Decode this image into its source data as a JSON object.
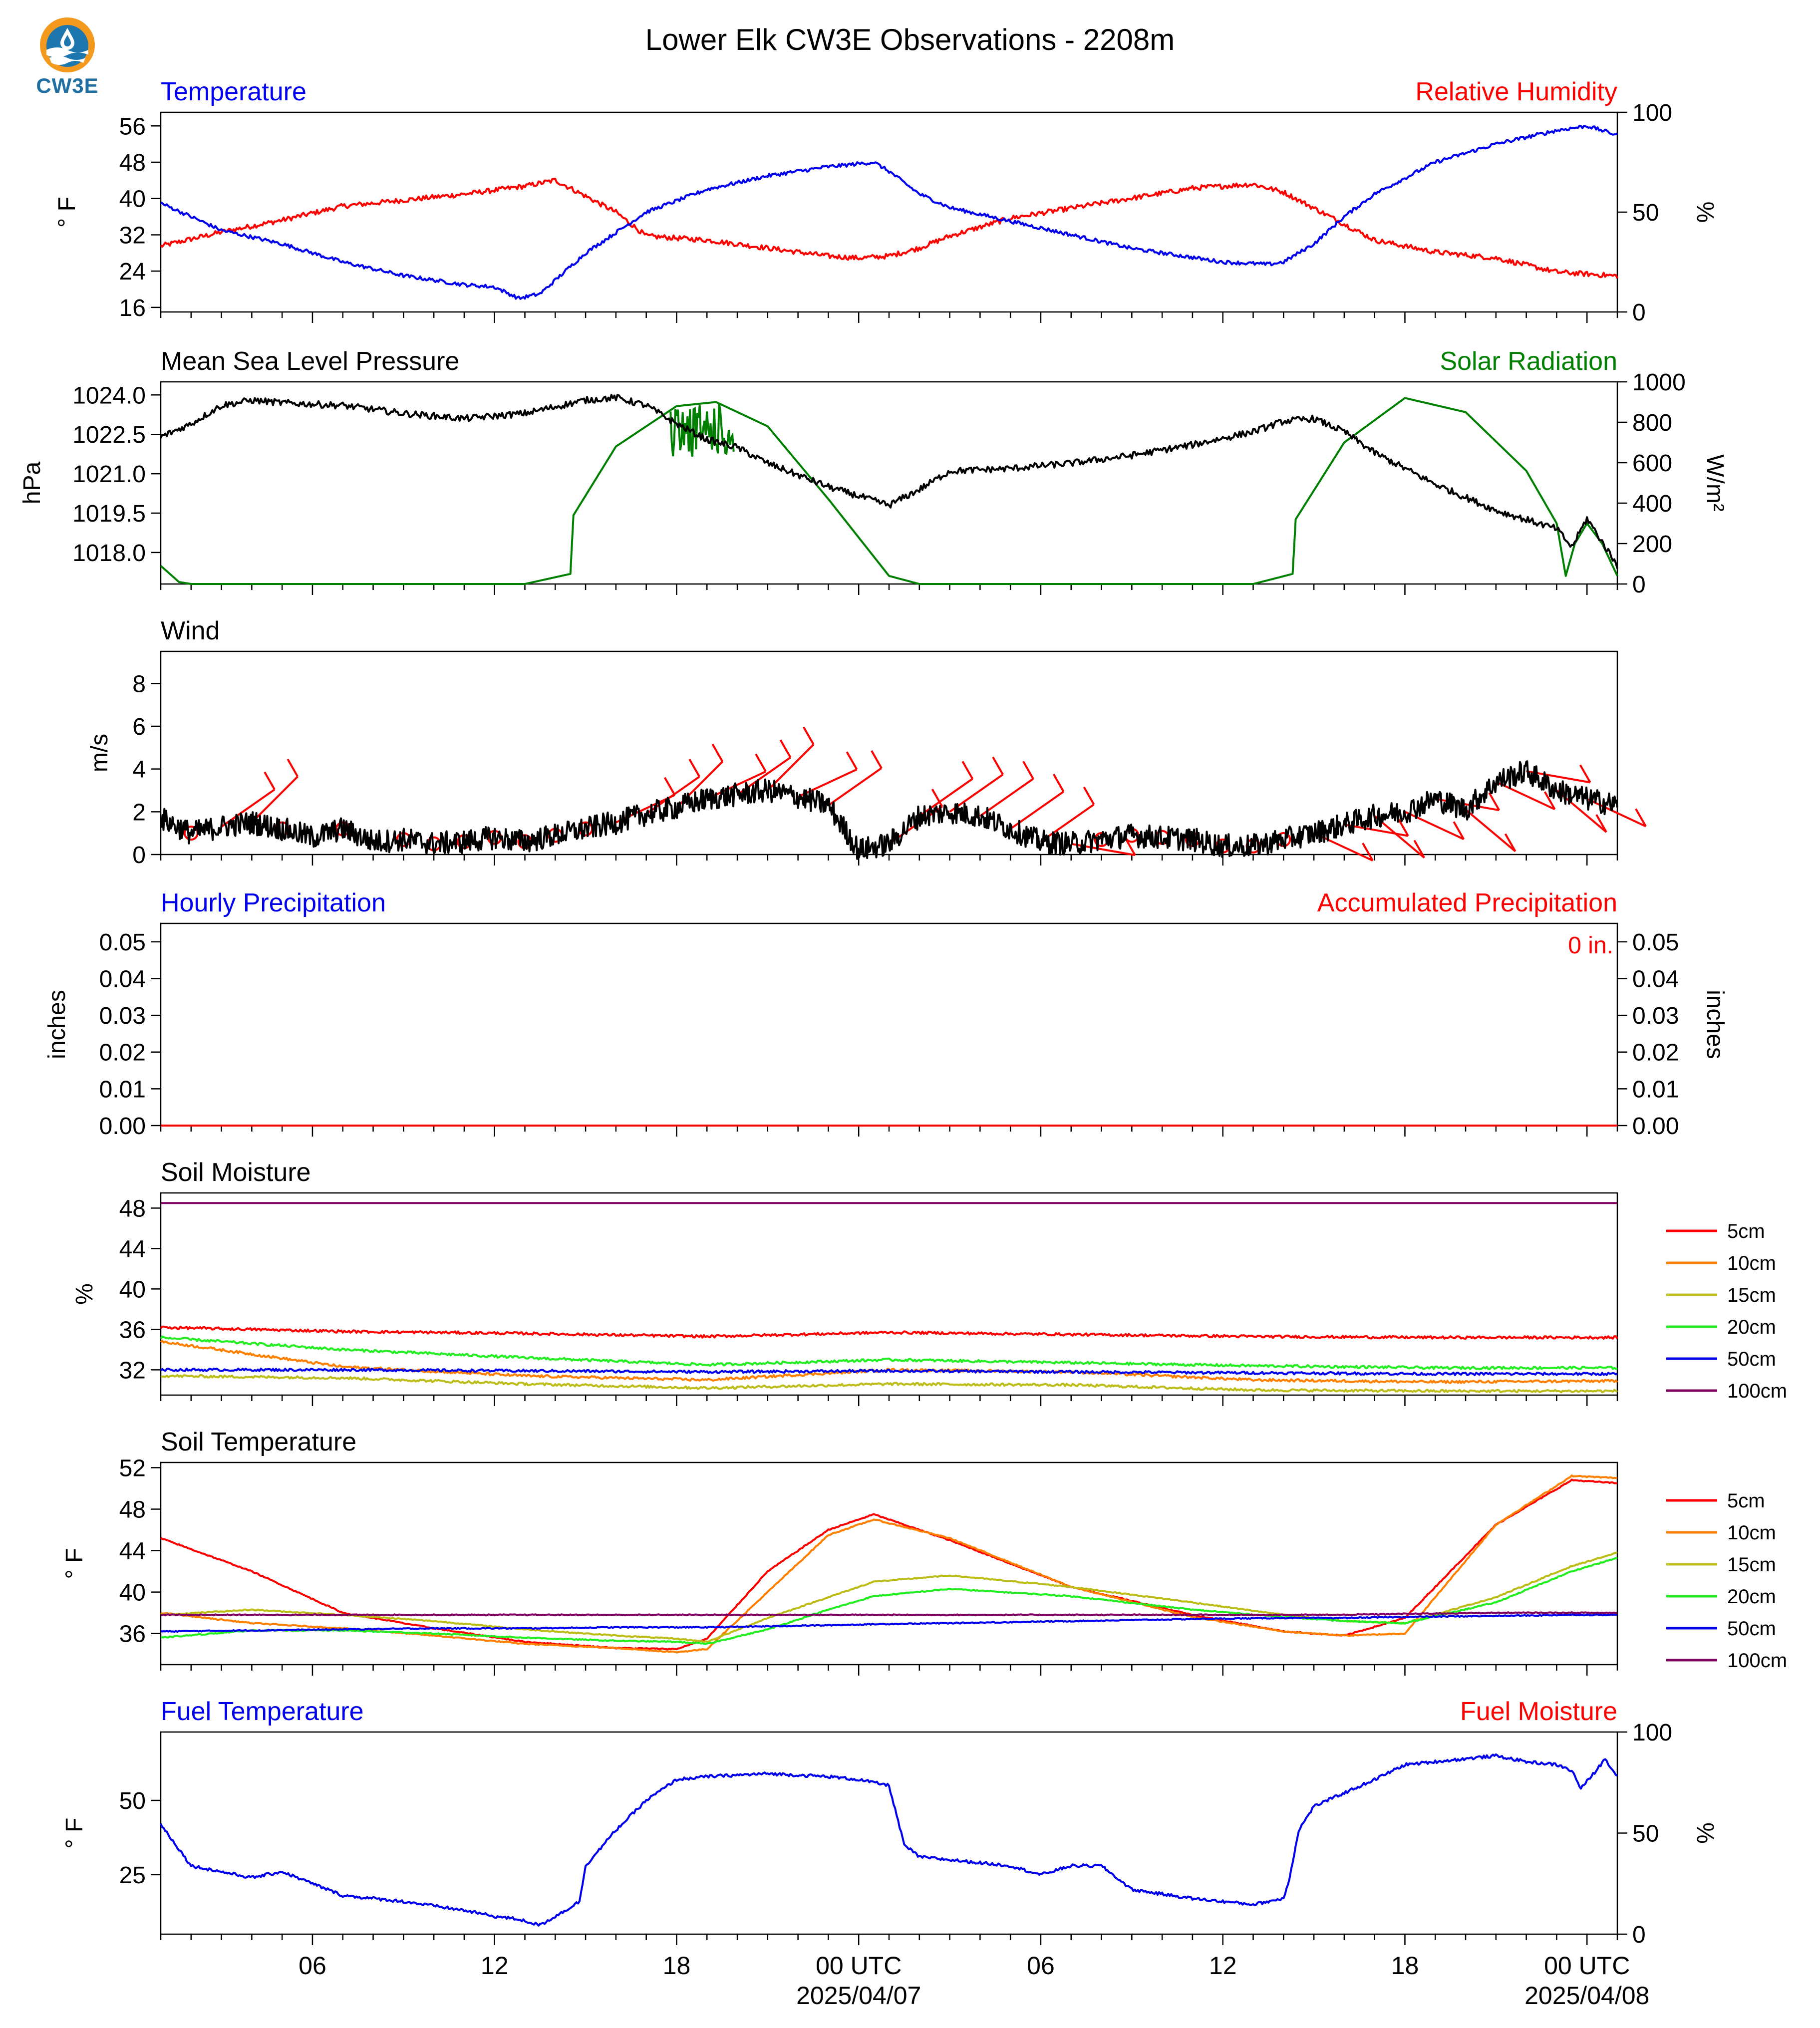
{
  "title": "Lower Elk CW3E Observations - 2208m",
  "logo_text": "CW3E",
  "colors": {
    "blue": "#0000ee",
    "red": "#ff0000",
    "green": "#008000",
    "black": "#000000"
  },
  "x_axis": {
    "range_hours": [
      0,
      48
    ],
    "ticks": [
      {
        "h": 5,
        "label": "06",
        "date": ""
      },
      {
        "h": 11,
        "label": "12",
        "date": ""
      },
      {
        "h": 17,
        "label": "18",
        "date": ""
      },
      {
        "h": 23,
        "label": "00 UTC",
        "date": "2025/04/07"
      },
      {
        "h": 29,
        "label": "06",
        "date": ""
      },
      {
        "h": 35,
        "label": "12",
        "date": ""
      },
      {
        "h": 41,
        "label": "18",
        "date": ""
      },
      {
        "h": 47,
        "label": "00 UTC",
        "date": "2025/04/08"
      }
    ]
  },
  "panels": {
    "temp_rh": {
      "title_left": "Temperature",
      "title_right": "Relative Humidity",
      "left_unit": "° F",
      "right_unit": "%",
      "left_ticks": [
        16,
        24,
        32,
        40,
        48,
        56
      ],
      "right_ticks": [
        0,
        50,
        100
      ]
    },
    "pressure": {
      "title_left": "Mean Sea Level Pressure",
      "title_right": "Solar Radiation",
      "left_unit": "hPa",
      "right_unit": "W/m²",
      "left_ticks": [
        "1018.0",
        "1019.5",
        "1021.0",
        "1022.5",
        "1024.0"
      ],
      "right_ticks": [
        0,
        200,
        400,
        600,
        800,
        1000
      ]
    },
    "wind": {
      "title_left": "Wind",
      "left_unit": "m/s",
      "left_ticks": [
        0,
        2,
        4,
        6,
        8
      ]
    },
    "precip": {
      "title_left": "Hourly Precipitation",
      "title_right": "Accumulated Precipitation",
      "left_unit": "inches",
      "right_unit": "inches",
      "ticks": [
        "0.00",
        "0.01",
        "0.02",
        "0.03",
        "0.04",
        "0.05"
      ],
      "total_label": "0 in."
    },
    "soil_moisture": {
      "title_left": "Soil Moisture",
      "left_unit": "%",
      "left_ticks": [
        32,
        36,
        40,
        44,
        48
      ],
      "legend": [
        "5cm",
        "10cm",
        "15cm",
        "20cm",
        "50cm",
        "100cm"
      ]
    },
    "soil_temp": {
      "title_left": "Soil Temperature",
      "left_unit": "° F",
      "left_ticks": [
        36,
        40,
        44,
        48,
        52
      ],
      "legend": [
        "5cm",
        "10cm",
        "15cm",
        "20cm",
        "50cm",
        "100cm"
      ]
    },
    "fuel": {
      "title_left": "Fuel Temperature",
      "title_right": "Fuel Moisture",
      "left_unit": "° F",
      "right_unit": "%",
      "left_ticks": [
        25,
        50
      ],
      "right_ticks": [
        0,
        50,
        100
      ]
    }
  },
  "chart_data": [
    {
      "type": "line",
      "title": "Temperature / Relative Humidity",
      "x_hours": [
        0,
        2,
        4,
        6,
        8,
        10,
        11,
        11.8,
        12.5,
        14,
        16,
        18,
        20,
        22,
        23.5,
        24,
        25,
        26,
        28,
        30,
        32,
        34,
        35,
        36.5,
        37,
        38,
        39,
        40,
        42,
        44,
        46,
        47,
        48
      ],
      "ylim": [
        15,
        59
      ],
      "series": [
        {
          "name": "Temperature",
          "color": "#0000ee",
          "axis": "left",
          "values": [
            39,
            33,
            30,
            26,
            23,
            21,
            20.5,
            18,
            19,
            28,
            37,
            42,
            45,
            47,
            48,
            46,
            41,
            38,
            35,
            32,
            29,
            27,
            26,
            25.5,
            26,
            30,
            36,
            41,
            48,
            52,
            55,
            56,
            54
          ]
        }
      ],
      "rh_x_hours": [
        0,
        2,
        4,
        6,
        8,
        10,
        12,
        13,
        14,
        15,
        16,
        18,
        20,
        22,
        23,
        24,
        25,
        26,
        28,
        30,
        32,
        34,
        36,
        37,
        38,
        40,
        42,
        44,
        46,
        48
      ],
      "rh_ylim": [
        0,
        100
      ],
      "rh_values": [
        33,
        40,
        46,
        53,
        56,
        59,
        63,
        66,
        58,
        50,
        38,
        36,
        32,
        28,
        27,
        28,
        32,
        38,
        47,
        52,
        57,
        62,
        64,
        60,
        52,
        36,
        30,
        27,
        20,
        18
      ]
    },
    {
      "type": "line",
      "title": "Mean Sea Level Pressure / Solar Radiation",
      "x_hours": [
        0,
        1,
        2,
        3,
        4,
        6,
        8,
        10,
        12,
        14,
        15,
        16,
        17,
        18,
        19,
        20,
        22,
        24,
        25,
        26,
        28,
        30,
        32,
        34,
        36,
        37,
        38,
        39,
        40,
        42,
        44,
        46,
        46.5,
        47,
        48
      ],
      "ylim": [
        1016.8,
        1024.5
      ],
      "series": [
        {
          "name": "Mean Sea Level Pressure",
          "color": "#000000",
          "axis": "left",
          "values": [
            1022.4,
            1022.9,
            1023.6,
            1023.8,
            1023.7,
            1023.6,
            1023.3,
            1023.1,
            1023.3,
            1023.8,
            1023.9,
            1023.6,
            1022.9,
            1022.3,
            1022.0,
            1021.4,
            1020.5,
            1019.8,
            1020.4,
            1021.1,
            1021.2,
            1021.4,
            1021.7,
            1022.1,
            1022.6,
            1023.0,
            1023.1,
            1022.6,
            1021.8,
            1020.6,
            1019.6,
            1018.9,
            1018.2,
            1019.3,
            1017.5
          ]
        }
      ],
      "solar_x_hours": [
        0,
        0.6,
        1,
        12,
        13.5,
        13.6,
        15,
        17,
        18.3,
        20,
        22,
        24,
        25,
        36,
        37.3,
        37.4,
        39,
        41,
        43,
        45,
        46,
        46.3,
        46.6,
        47,
        47.5,
        48
      ],
      "solar_ylim": [
        0,
        1000
      ],
      "solar_values": [
        90,
        10,
        0,
        0,
        50,
        340,
        680,
        880,
        900,
        780,
        420,
        40,
        0,
        0,
        50,
        320,
        700,
        920,
        850,
        560,
        300,
        40,
        200,
        300,
        200,
        40
      ]
    },
    {
      "type": "line",
      "title": "Wind",
      "x_hours": [
        0,
        1,
        2,
        3,
        4,
        5,
        6,
        7,
        8,
        9,
        10,
        11,
        12,
        13,
        14,
        15,
        16,
        17,
        18,
        19,
        20,
        21,
        22,
        23,
        24,
        25,
        26,
        27,
        28,
        29,
        30,
        31,
        32,
        33,
        34,
        35,
        36,
        37,
        38,
        39,
        40,
        41,
        42,
        43,
        44,
        45,
        46,
        47,
        48
      ],
      "ylim": [
        0,
        9.5
      ],
      "series": [
        {
          "name": "Wind Speed",
          "color": "#000000",
          "axis": "left",
          "values": [
            1.7,
            1.0,
            1.3,
            1.5,
            1.2,
            0.8,
            1.2,
            0.6,
            0.7,
            0.5,
            0.6,
            0.8,
            0.6,
            0.9,
            1.2,
            1.5,
            1.9,
            2.2,
            2.6,
            2.8,
            3.0,
            2.7,
            2.3,
            0.2,
            0.5,
            1.8,
            2.0,
            1.8,
            1.2,
            0.6,
            0.5,
            0.7,
            0.9,
            0.8,
            0.7,
            0.4,
            0.4,
            0.7,
            1.0,
            1.4,
            1.8,
            2.0,
            2.6,
            2.1,
            3.4,
            3.9,
            3.0,
            2.6,
            2.3
          ]
        }
      ]
    },
    {
      "type": "line",
      "title": "Precipitation",
      "x_hours": [
        0,
        48
      ],
      "ylim": [
        0,
        0.055
      ],
      "series": [
        {
          "name": "Hourly Precipitation",
          "color": "#0000ee",
          "axis": "left",
          "values": [
            0,
            0
          ]
        },
        {
          "name": "Accumulated Precipitation",
          "color": "#ff0000",
          "axis": "right",
          "values": [
            0,
            0
          ]
        }
      ]
    },
    {
      "type": "line",
      "title": "Soil Moisture",
      "x_hours": [
        0,
        6,
        12,
        18,
        24,
        30,
        36,
        42,
        48
      ],
      "ylim": [
        29.5,
        49.5
      ],
      "series": [
        {
          "name": "5cm",
          "color": "#ff0000",
          "values": [
            36.2,
            35.8,
            35.6,
            35.3,
            35.7,
            35.5,
            35.3,
            35.2,
            35.2
          ]
        },
        {
          "name": "10cm",
          "color": "#ff8000",
          "values": [
            34.8,
            32.3,
            31.4,
            31.0,
            32.0,
            31.8,
            31.0,
            30.8,
            30.9
          ]
        },
        {
          "name": "15cm",
          "color": "#bdbd1a",
          "values": [
            31.4,
            31.2,
            30.6,
            30.2,
            30.6,
            30.5,
            30.0,
            29.9,
            29.9
          ]
        },
        {
          "name": "20cm",
          "color": "#22ee22",
          "values": [
            35.2,
            34.0,
            33.2,
            32.5,
            33.0,
            32.7,
            32.4,
            32.2,
            32.2
          ]
        },
        {
          "name": "50cm",
          "color": "#0000ee",
          "values": [
            32.0,
            32.0,
            31.9,
            31.8,
            31.9,
            31.8,
            31.7,
            31.6,
            31.6
          ]
        },
        {
          "name": "100cm",
          "color": "#800060",
          "values": [
            48.5,
            48.5,
            48.5,
            48.5,
            48.5,
            48.5,
            48.5,
            48.5,
            48.5
          ]
        }
      ]
    },
    {
      "type": "line",
      "title": "Soil Temperature",
      "x_hours": [
        0,
        3,
        6,
        9,
        12,
        15,
        17,
        18,
        20,
        22,
        23.5,
        26,
        30,
        34,
        37,
        39,
        41,
        44,
        46.5,
        48
      ],
      "ylim": [
        33,
        52.5
      ],
      "series": [
        {
          "name": "5cm",
          "color": "#ff0000",
          "values": [
            45.2,
            42,
            38,
            36.5,
            35.2,
            34.6,
            34.5,
            35.5,
            42,
            46,
            47.5,
            45,
            40.5,
            37.8,
            36.2,
            35.8,
            37.5,
            46.5,
            50.8,
            50.5
          ]
        },
        {
          "name": "10cm",
          "color": "#ff8000",
          "values": [
            38,
            37,
            36.5,
            35.8,
            35,
            34.6,
            34.2,
            34.5,
            40,
            45.5,
            47,
            45.2,
            40.5,
            37.6,
            36.2,
            35.8,
            36.0,
            46.5,
            51.2,
            51.0
          ]
        },
        {
          "name": "15cm",
          "color": "#bdbd1a",
          "values": [
            37.8,
            38.3,
            37.8,
            37.2,
            36.4,
            35.8,
            35.5,
            35.2,
            37.5,
            39.5,
            41,
            41.6,
            40.5,
            39,
            37.8,
            37.2,
            37.0,
            39.5,
            42.5,
            43.8
          ]
        },
        {
          "name": "20cm",
          "color": "#22ee22",
          "values": [
            35.6,
            36.3,
            36.3,
            36.0,
            35.6,
            35.3,
            35.2,
            35.0,
            36.4,
            38.3,
            39.6,
            40.3,
            39.6,
            38.3,
            37.6,
            37.2,
            37.0,
            39.0,
            42.0,
            43.3
          ]
        },
        {
          "name": "50cm",
          "color": "#0000ee",
          "values": [
            36.2,
            36.3,
            36.4,
            36.5,
            36.5,
            36.6,
            36.6,
            36.6,
            36.7,
            36.8,
            36.9,
            37.0,
            37.2,
            37.4,
            37.5,
            37.5,
            37.6,
            37.7,
            37.8,
            37.8
          ]
        },
        {
          "name": "100cm",
          "color": "#800060",
          "values": [
            37.8,
            37.8,
            37.8,
            37.8,
            37.8,
            37.8,
            37.8,
            37.8,
            37.8,
            37.8,
            37.8,
            37.8,
            37.8,
            37.8,
            37.8,
            37.8,
            37.9,
            38.0,
            38.0,
            38.0
          ]
        }
      ]
    },
    {
      "type": "line",
      "title": "Fuel Temperature / Fuel Moisture",
      "x_hours": [
        0,
        0.5,
        1,
        2,
        3,
        4,
        5,
        6,
        8,
        10,
        11,
        11.8,
        12.5,
        13.5,
        13.8,
        14,
        15,
        16,
        17,
        18,
        20,
        22,
        23,
        24,
        24.5,
        25,
        26,
        28,
        29,
        30,
        31,
        32,
        34,
        35,
        36,
        37,
        37.2,
        37.5,
        38,
        40,
        41,
        42,
        43,
        44,
        45,
        46,
        46.5,
        46.8,
        47.3,
        47.6,
        48
      ],
      "ylim": [
        5,
        73
      ],
      "series": [
        {
          "name": "Fuel Temperature",
          "color": "#0000ee",
          "axis": "left",
          "values": [
            42,
            35,
            28,
            26,
            24,
            26,
            22,
            18,
            16,
            13,
            11,
            10,
            8,
            14,
            16,
            28,
            40,
            50,
            57,
            58,
            59,
            58,
            57,
            55,
            35,
            31,
            30,
            28,
            25,
            28,
            28,
            20,
            17,
            16,
            15,
            17,
            24,
            40,
            48,
            57,
            62,
            63,
            64,
            65,
            63,
            62,
            60,
            54,
            60,
            64,
            58
          ]
        }
      ]
    }
  ]
}
